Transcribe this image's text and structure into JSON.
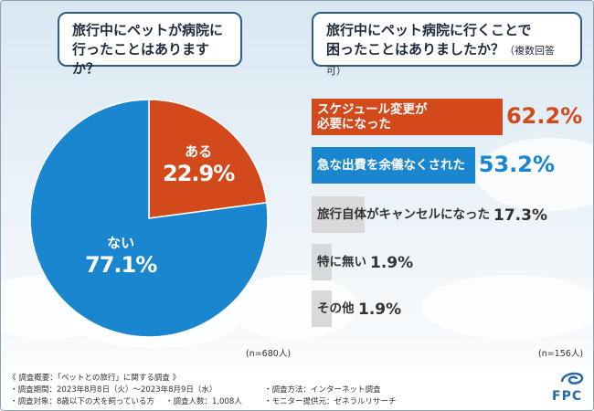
{
  "left_question": {
    "line1": "旅行中にペットが病院に",
    "line2": "行ったことはありますか？"
  },
  "right_question": {
    "line1": "旅行中にペット病院に行くことで",
    "line2": "困ったことはありましたか？",
    "note": "（複数回答可）"
  },
  "chart_data": [
    {
      "type": "pie",
      "slices": [
        {
          "label": "ある",
          "value": 22.9,
          "display": "22.9%",
          "color": "#d2491c"
        },
        {
          "label": "ない",
          "value": 77.1,
          "display": "77.1%",
          "color": "#1a86d0"
        }
      ],
      "n_label": "(n=680人)"
    },
    {
      "type": "bar",
      "orientation": "horizontal",
      "xlim": [
        0,
        100
      ],
      "categories": [
        "スケジュール変更が\n必要になった",
        "急な出費を余儀なくされた",
        "旅行自体がキャンセルになった",
        "特に無い",
        "その他"
      ],
      "values": [
        62.2,
        53.2,
        17.3,
        1.9,
        1.9
      ],
      "display": [
        "62.2%",
        "53.2%",
        "17.3%",
        "1.9%",
        "1.9%"
      ],
      "colors": [
        "#d2491c",
        "#1a86d0",
        "#d9d9d9",
        "#d9d9d9",
        "#d9d9d9"
      ],
      "text_colors": [
        "#ffffff",
        "#ffffff",
        "#333333",
        "#333333",
        "#333333"
      ],
      "value_colors": [
        "#d2491c",
        "#1a86d0",
        "#333333",
        "#333333",
        "#333333"
      ],
      "n_label": "(n=156人)"
    }
  ],
  "footer": {
    "title": "《 調査概要：「ペットとの旅行」に関する調査 》",
    "period": "・調査期間：2023年8月8日（火）～2023年8月9日（水）",
    "method": "・調査方法：インターネット調査",
    "target": "・調査対象：8歳以下の犬を飼っている方",
    "count": "・調査人数：1,008人",
    "provider": "・モニター提供元：ゼネラルリサーチ",
    "logo": "FPC"
  }
}
